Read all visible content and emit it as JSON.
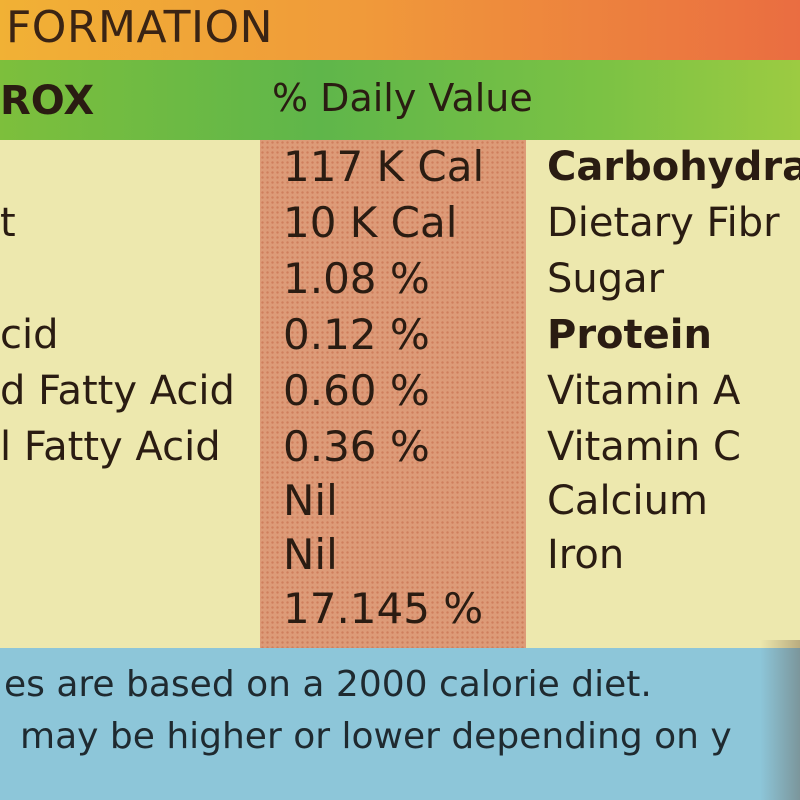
{
  "header": {
    "title": "FORMATION",
    "col_left": "ROX",
    "col_mid": "% Daily Value"
  },
  "rows": [
    {
      "left": "",
      "value": "117 K Cal",
      "right": "Carbohydra",
      "right_bold": true
    },
    {
      "left": "t",
      "value": "10 K Cal",
      "right": "Dietary Fibr",
      "right_bold": false
    },
    {
      "left": "",
      "value": "1.08 %",
      "right": "Sugar",
      "right_bold": false
    },
    {
      "left": "cid",
      "value": "0.12 %",
      "right": "Protein",
      "right_bold": true
    },
    {
      "left": "d Fatty Acid",
      "value": "0.60 %",
      "right": "Vitamin A",
      "right_bold": false
    },
    {
      "left": "l Fatty Acid",
      "value": "0.36 %",
      "right": "Vitamin C",
      "right_bold": false
    },
    {
      "left": "",
      "value": "Nil",
      "right": "Calcium",
      "right_bold": false
    },
    {
      "left": "",
      "value": "Nil",
      "right": "Iron",
      "right_bold": false
    },
    {
      "left": "",
      "value": "17.145 %",
      "right": "",
      "right_bold": false
    }
  ],
  "footnote": {
    "line1": "es are based on a 2000 calorie diet.",
    "line2": "may be higher or lower depending on y"
  },
  "colors": {
    "title_band": "#f09a3a",
    "green_band": "#5fb64a",
    "body": "#ede8ae",
    "dv_column": "#dd9b78",
    "footnote_band": "#8dc6d9",
    "text": "#2a1c12"
  }
}
